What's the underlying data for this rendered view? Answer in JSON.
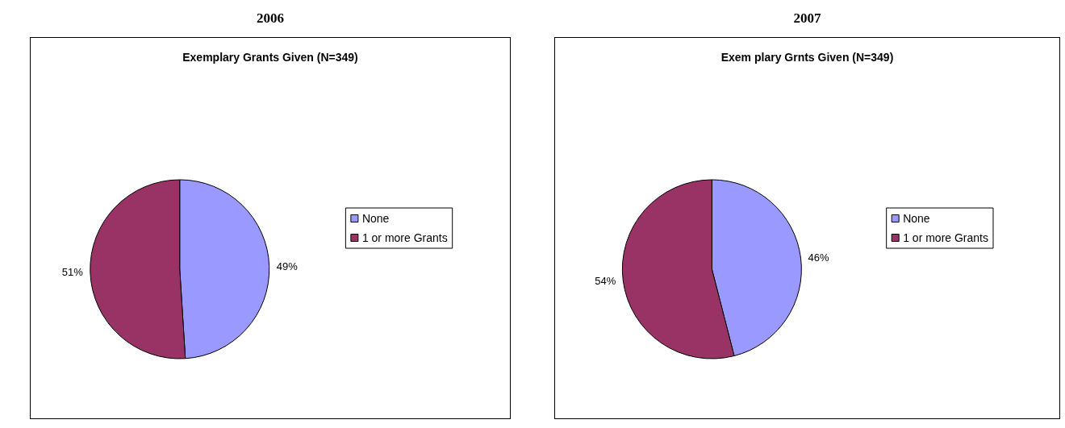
{
  "chart_data": [
    {
      "type": "pie",
      "title": "2006",
      "subtitle": "Exemplary Grants Given (N=349)",
      "categories": [
        "None",
        "1 or more Grants"
      ],
      "values": [
        49,
        51
      ],
      "value_labels": [
        "49%",
        "51%"
      ],
      "colors": [
        "#9999ff",
        "#993366"
      ],
      "legend": "right"
    },
    {
      "type": "pie",
      "title": "2007",
      "subtitle": "Exem plary Grnts Given (N=349)",
      "categories": [
        "None",
        "1 or more Grants"
      ],
      "values": [
        46,
        54
      ],
      "value_labels": [
        "46%",
        "54%"
      ],
      "colors": [
        "#9999ff",
        "#993366"
      ],
      "legend": "right"
    }
  ]
}
